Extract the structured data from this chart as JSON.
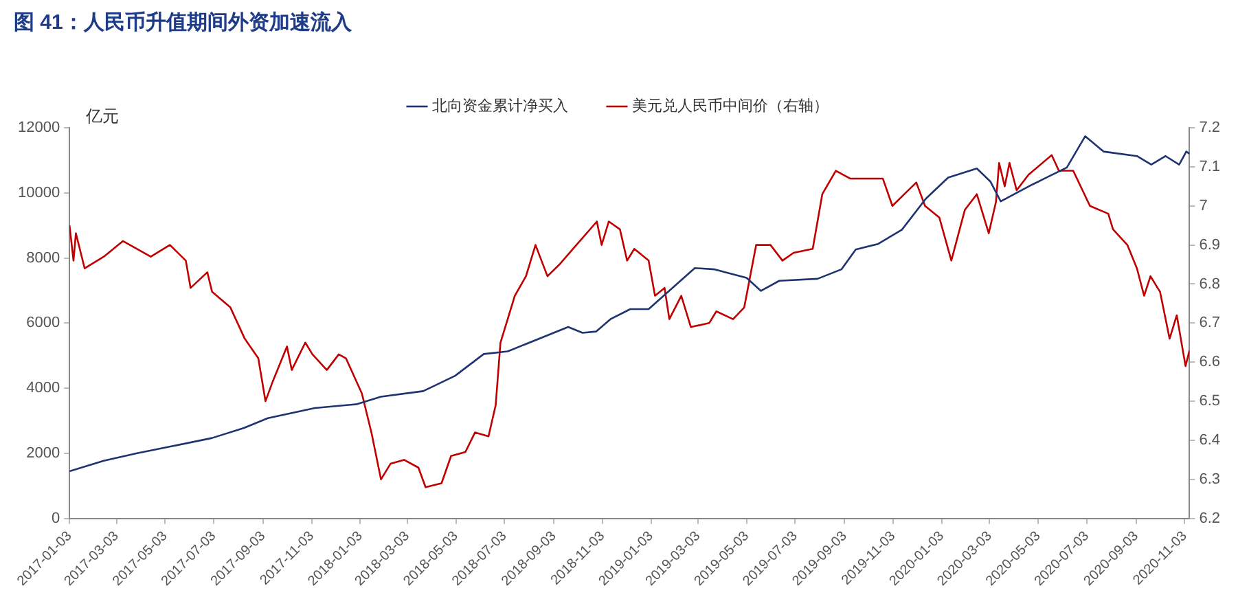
{
  "chart_data": {
    "type": "line",
    "title": "图 41：人民币升值期间外资加速流入",
    "ylabel": "亿元",
    "xlim": [
      "2017-01-03",
      "2020-11-09"
    ],
    "xticks": [
      "2017-01-03",
      "2017-03-03",
      "2017-05-03",
      "2017-07-03",
      "2017-09-03",
      "2017-11-03",
      "2018-01-03",
      "2018-03-03",
      "2018-05-03",
      "2018-07-03",
      "2018-09-03",
      "2018-11-03",
      "2019-01-03",
      "2019-03-03",
      "2019-05-03",
      "2019-07-03",
      "2019-09-03",
      "2019-11-03",
      "2020-01-03",
      "2020-03-03",
      "2020-05-03",
      "2020-07-03",
      "2020-09-03",
      "2020-11-03"
    ],
    "ylim": [
      0,
      12000
    ],
    "yticks": [
      0,
      2000,
      4000,
      6000,
      8000,
      10000,
      12000
    ],
    "y2lim": [
      6.2,
      7.2
    ],
    "y2ticks": [
      6.2,
      6.3,
      6.4,
      6.5,
      6.6,
      6.7,
      6.8,
      6.9,
      7,
      7.1,
      7.2
    ],
    "grid": false,
    "legend": "top",
    "marker": "none",
    "line_style": "solid",
    "series": [
      {
        "name": "北向资金累计净买入",
        "color": "#1f3370",
        "x": [
          "2017-01-03",
          "2017-02-15",
          "2017-03-28",
          "2017-05-14",
          "2017-07-01",
          "2017-08-10",
          "2017-09-09",
          "2017-11-07",
          "2017-12-30",
          "2018-01-29",
          "2018-03-23",
          "2018-05-02",
          "2018-06-07",
          "2018-07-07",
          "2018-09-21",
          "2018-10-09",
          "2018-10-26",
          "2018-11-13",
          "2018-12-08",
          "2018-12-31",
          "2019-02-09",
          "2019-02-27",
          "2019-03-24",
          "2019-05-03",
          "2019-05-21",
          "2019-06-13",
          "2019-07-31",
          "2019-08-30",
          "2019-09-17",
          "2019-10-15",
          "2019-11-14",
          "2019-12-14",
          "2020-01-11",
          "2020-02-16",
          "2020-03-04",
          "2020-03-17",
          "2020-04-26",
          "2020-06-08",
          "2020-07-01",
          "2020-07-24",
          "2020-09-04",
          "2020-09-22",
          "2020-10-10",
          "2020-10-27",
          "2020-11-05",
          "2020-11-09"
        ],
        "values": [
          1450,
          1770,
          2000,
          2230,
          2470,
          2780,
          3080,
          3390,
          3510,
          3740,
          3910,
          4380,
          5050,
          5130,
          5880,
          5700,
          5740,
          6120,
          6430,
          6430,
          7300,
          7690,
          7650,
          7390,
          6990,
          7300,
          7360,
          7650,
          8260,
          8430,
          8870,
          9820,
          10470,
          10750,
          10350,
          9740,
          10260,
          10780,
          11740,
          11270,
          11130,
          10870,
          11130,
          10870,
          11270,
          11200
        ]
      },
      {
        "name": "美元兑人民币中间价（右轴）",
        "color": "#c00000",
        "axis": "y2",
        "x": [
          "2017-01-03",
          "2017-01-08",
          "2017-01-11",
          "2017-01-22",
          "2017-02-15",
          "2017-03-11",
          "2017-04-15",
          "2017-05-09",
          "2017-05-29",
          "2017-06-04",
          "2017-06-25",
          "2017-07-01",
          "2017-07-24",
          "2017-08-11",
          "2017-08-28",
          "2017-09-06",
          "2017-09-15",
          "2017-10-03",
          "2017-10-09",
          "2017-10-26",
          "2017-11-04",
          "2017-11-22",
          "2017-12-07",
          "2017-12-16",
          "2018-01-05",
          "2018-01-17",
          "2018-01-29",
          "2018-02-10",
          "2018-02-27",
          "2018-03-17",
          "2018-03-26",
          "2018-04-15",
          "2018-04-27",
          "2018-05-15",
          "2018-05-27",
          "2018-06-13",
          "2018-06-22",
          "2018-06-28",
          "2018-07-16",
          "2018-07-30",
          "2018-08-11",
          "2018-08-26",
          "2018-09-10",
          "2018-09-27",
          "2018-10-27",
          "2018-11-02",
          "2018-11-11",
          "2018-11-25",
          "2018-12-04",
          "2018-12-13",
          "2018-12-31",
          "2019-01-08",
          "2019-01-20",
          "2019-01-26",
          "2019-02-10",
          "2019-02-22",
          "2019-03-17",
          "2019-03-26",
          "2019-04-16",
          "2019-04-30",
          "2019-05-15",
          "2019-06-02",
          "2019-06-17",
          "2019-07-01",
          "2019-07-25",
          "2019-08-06",
          "2019-08-23",
          "2019-09-10",
          "2019-10-21",
          "2019-11-02",
          "2019-11-17",
          "2019-12-02",
          "2019-12-13",
          "2019-12-31",
          "2020-01-15",
          "2020-02-01",
          "2020-02-16",
          "2020-03-02",
          "2020-03-11",
          "2020-03-15",
          "2020-03-22",
          "2020-03-28",
          "2020-04-06",
          "2020-04-21",
          "2020-05-20",
          "2020-05-29",
          "2020-06-16",
          "2020-07-07",
          "2020-07-30",
          "2020-08-05",
          "2020-08-23",
          "2020-09-04",
          "2020-09-13",
          "2020-09-21",
          "2020-10-03",
          "2020-10-15",
          "2020-10-24",
          "2020-11-04",
          "2020-11-09"
        ],
        "values": [
          6.95,
          6.86,
          6.93,
          6.84,
          6.87,
          6.91,
          6.87,
          6.9,
          6.86,
          6.79,
          6.83,
          6.78,
          6.74,
          6.66,
          6.61,
          6.5,
          6.55,
          6.64,
          6.58,
          6.65,
          6.62,
          6.58,
          6.62,
          6.61,
          6.52,
          6.42,
          6.3,
          6.34,
          6.35,
          6.33,
          6.28,
          6.29,
          6.36,
          6.37,
          6.42,
          6.41,
          6.49,
          6.65,
          6.77,
          6.82,
          6.9,
          6.82,
          6.85,
          6.89,
          6.96,
          6.9,
          6.96,
          6.94,
          6.86,
          6.89,
          6.86,
          6.77,
          6.79,
          6.71,
          6.77,
          6.69,
          6.7,
          6.73,
          6.71,
          6.74,
          6.9,
          6.9,
          6.86,
          6.88,
          6.89,
          7.03,
          7.09,
          7.07,
          7.07,
          7,
          7.03,
          7.06,
          7,
          6.97,
          6.86,
          6.99,
          7.03,
          6.93,
          7.01,
          7.11,
          7.05,
          7.11,
          7.04,
          7.08,
          7.13,
          7.09,
          7.09,
          7,
          6.98,
          6.94,
          6.9,
          6.84,
          6.77,
          6.82,
          6.78,
          6.66,
          6.72,
          6.59,
          6.63
        ]
      }
    ]
  }
}
